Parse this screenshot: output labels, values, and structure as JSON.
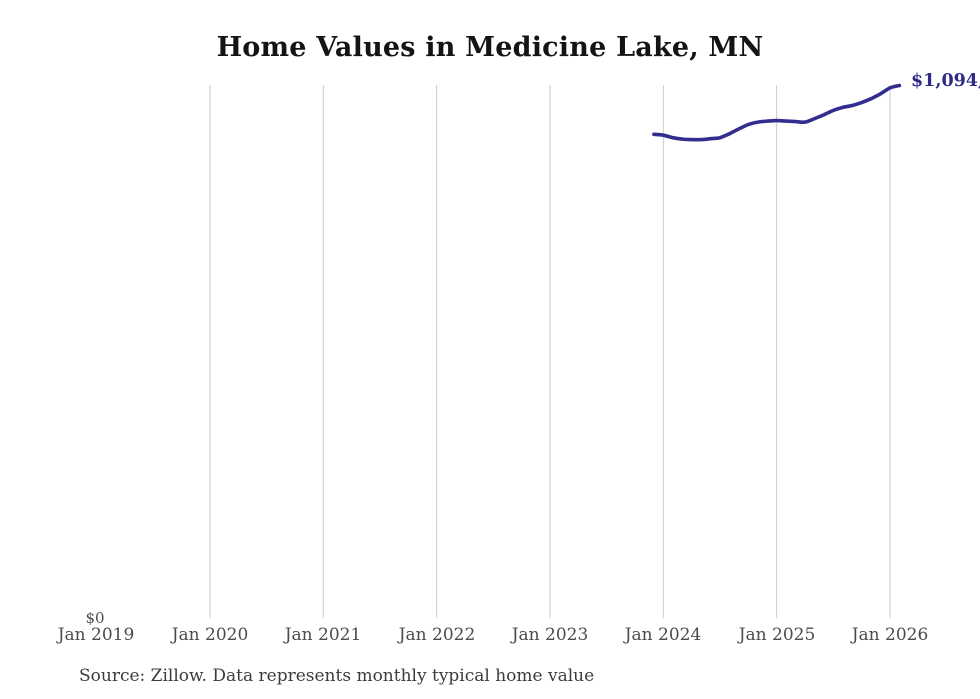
{
  "page": {
    "source_note": "Source: Zillow. Data represents monthly typical home value"
  },
  "colors": {
    "line": "#322e90",
    "end_label": "#2d2b86",
    "grid": "#cbcbcb",
    "title": "#141414",
    "tick": "#4c4c4c",
    "source": "#3c3c3c"
  },
  "chart_data": {
    "type": "line",
    "title": "Home Values in Medicine Lake, MN",
    "xlabel": "",
    "ylabel": "",
    "ylim": [
      0,
      1100000
    ],
    "grid": "vertical-only",
    "legend_position": "none",
    "y_zero_label": "$0",
    "end_label": "$1,094,",
    "ticks": [
      {
        "label": "Jan 2019",
        "gridline": false
      },
      {
        "label": "Jan 2020",
        "gridline": true
      },
      {
        "label": "Jan 2021",
        "gridline": true
      },
      {
        "label": "Jan 2022",
        "gridline": true
      },
      {
        "label": "Jan 2023",
        "gridline": true
      },
      {
        "label": "Jan 2024",
        "gridline": true
      },
      {
        "label": "Jan 2025",
        "gridline": true
      },
      {
        "label": "Jan 2026",
        "gridline": true
      }
    ],
    "series": [
      {
        "name": "Monthly typical home value",
        "points": [
          {
            "month": "2023-12",
            "value": 994000
          },
          {
            "month": "2024-01",
            "value": 992000
          },
          {
            "month": "2024-02",
            "value": 987000
          },
          {
            "month": "2024-03",
            "value": 984000
          },
          {
            "month": "2024-04",
            "value": 983000
          },
          {
            "month": "2024-05",
            "value": 983000
          },
          {
            "month": "2024-06",
            "value": 985000
          },
          {
            "month": "2024-07",
            "value": 987000
          },
          {
            "month": "2024-08",
            "value": 995000
          },
          {
            "month": "2024-09",
            "value": 1005000
          },
          {
            "month": "2024-10",
            "value": 1014000
          },
          {
            "month": "2024-11",
            "value": 1019000
          },
          {
            "month": "2024-12",
            "value": 1021000
          },
          {
            "month": "2025-01",
            "value": 1022000
          },
          {
            "month": "2025-02",
            "value": 1021000
          },
          {
            "month": "2025-03",
            "value": 1020000
          },
          {
            "month": "2025-04",
            "value": 1019000
          },
          {
            "month": "2025-05",
            "value": 1026000
          },
          {
            "month": "2025-06",
            "value": 1034000
          },
          {
            "month": "2025-07",
            "value": 1043000
          },
          {
            "month": "2025-08",
            "value": 1049000
          },
          {
            "month": "2025-09",
            "value": 1053000
          },
          {
            "month": "2025-10",
            "value": 1059000
          },
          {
            "month": "2025-11",
            "value": 1067000
          },
          {
            "month": "2025-12",
            "value": 1077000
          },
          {
            "month": "2026-01",
            "value": 1089000
          },
          {
            "month": "2026-02",
            "value": 1094000
          }
        ]
      }
    ]
  }
}
